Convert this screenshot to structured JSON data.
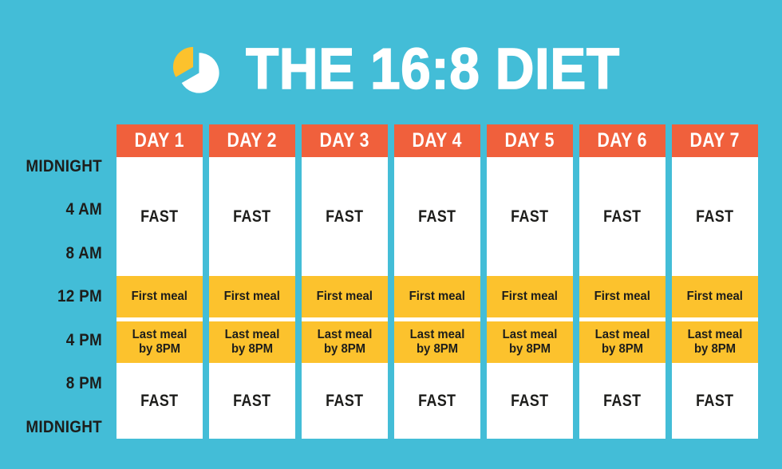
{
  "header": {
    "title": "THE 16:8 DIET",
    "icon": "pie-clock"
  },
  "palette": {
    "background": "#43BDD7",
    "day_header": "#F0603C",
    "meal_block": "#FCC22D",
    "fast_block": "#FFFFFF",
    "title_text": "#FFFFFF",
    "label_text": "#1D1D1B",
    "icon_wedge": "#FCC22D",
    "icon_pie": "#FFFFFF"
  },
  "timeline": {
    "labels": [
      "MIDNIGHT",
      "4 AM",
      "8 AM",
      "12 PM",
      "4 PM",
      "8 PM",
      "MIDNIGHT"
    ]
  },
  "table": {
    "days": [
      "DAY 1",
      "DAY 2",
      "DAY 3",
      "DAY 4",
      "DAY 5",
      "DAY 6",
      "DAY 7"
    ],
    "rows": [
      {
        "label": "FAST",
        "type": "fast"
      },
      {
        "label": "First meal",
        "type": "meal"
      },
      {
        "label": "Last meal by 8PM",
        "type": "meal"
      },
      {
        "label": "FAST",
        "type": "fast"
      }
    ]
  }
}
